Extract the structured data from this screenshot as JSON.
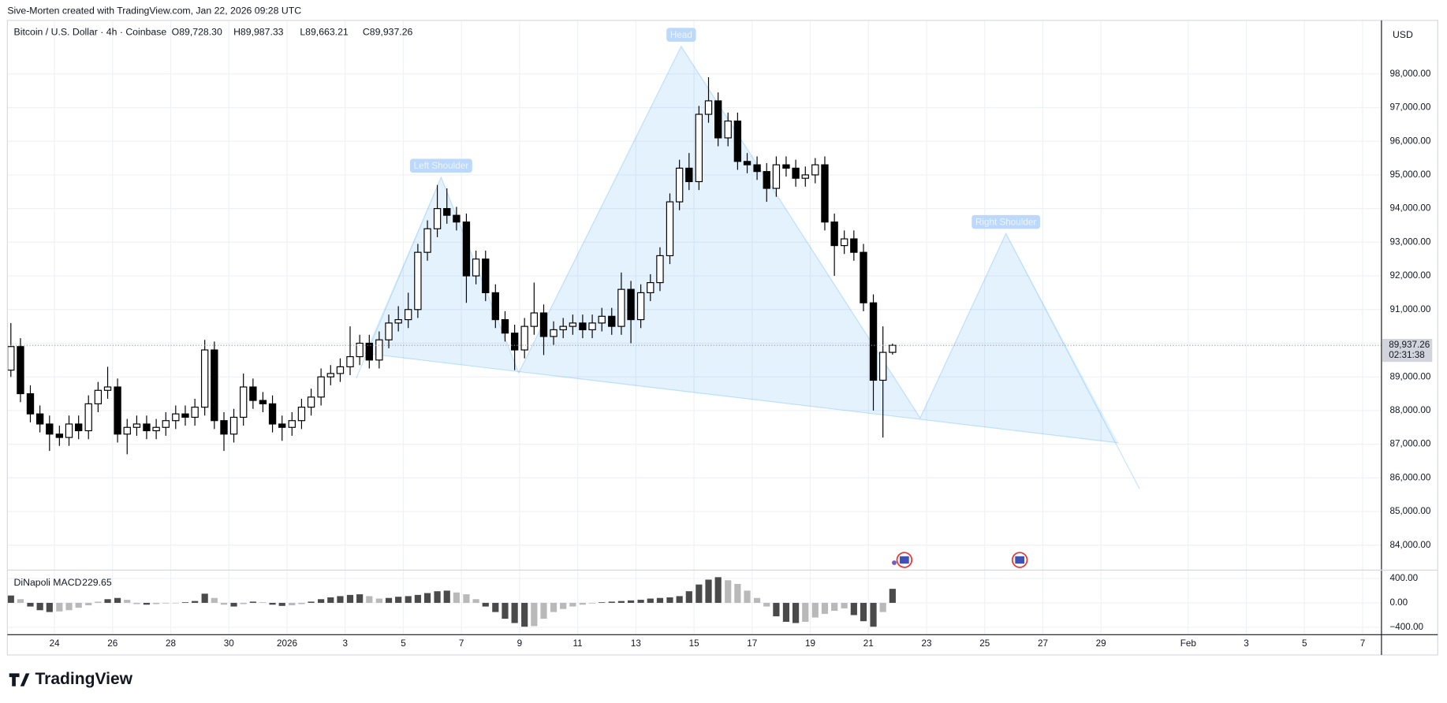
{
  "header": {
    "credit": "Sive-Morten created with TradingView.com, Jan 22, 2026 09:28 UTC",
    "logo": "TradingView"
  },
  "chart_data": {
    "type": "candlestick",
    "title": "Bitcoin / U.S. Dollar · 4h · Coinbase",
    "legend_ohlc": [
      "O89,728.30",
      "H89,987.33",
      "L89,663.21",
      "C89,937.26"
    ],
    "currency": "USD",
    "last_price_label": "89,937.26",
    "countdown": "02:31:38",
    "up_color": "#ffffff",
    "down_color": "#000000",
    "grid": true,
    "x": [
      -9.5,
      -9.17,
      -8.83,
      -8.5,
      -8.17,
      -7.83,
      -7.5,
      -7.17,
      -6.83,
      -6.5,
      -6.17,
      -5.83,
      -5.5,
      -5.17,
      -4.83,
      -4.5,
      -4.17,
      -3.83,
      -3.5,
      -3.17,
      -2.83,
      -2.5,
      -2.17,
      -1.83,
      -1.5,
      -1.17,
      -0.83,
      -0.5,
      -0.17,
      0.17,
      0.5,
      0.83,
      1.17,
      1.5,
      1.83,
      2.17,
      2.5,
      2.83,
      3.17,
      3.5,
      3.83,
      4.17,
      4.5,
      4.83,
      5.17,
      5.5,
      5.83,
      6.17,
      6.5,
      6.83,
      7.17,
      7.5,
      7.83,
      8.17,
      8.5,
      8.83,
      9.17,
      9.5,
      9.83,
      10.17,
      10.5,
      10.83,
      11.17,
      11.5,
      11.83,
      12.17,
      12.5,
      12.83,
      13.17,
      13.5,
      13.83,
      14.17,
      14.5,
      14.83,
      15.17,
      15.5,
      15.83,
      16.17,
      16.5,
      16.83,
      17.17,
      17.5,
      17.83,
      18.17,
      18.5,
      18.83,
      19.17,
      19.5,
      19.83,
      20.17,
      20.5,
      20.83
    ],
    "open": [
      89200,
      89900,
      88500,
      87900,
      87600,
      87300,
      87200,
      87600,
      87400,
      88200,
      88600,
      88700,
      87300,
      87500,
      87600,
      87400,
      87500,
      87700,
      87900,
      87800,
      88100,
      89800,
      87700,
      87300,
      87800,
      88700,
      88300,
      88200,
      87600,
      87500,
      87700,
      88100,
      88400,
      89000,
      89100,
      89300,
      89600,
      90000,
      89500,
      90100,
      90600,
      90700,
      91000,
      92700,
      93400,
      94000,
      93800,
      93600,
      92000,
      92500,
      91500,
      90700,
      90300,
      89800,
      90500,
      90900,
      90200,
      90400,
      90500,
      90600,
      90400,
      90600,
      90800,
      90500,
      91600,
      90700,
      91500,
      91800,
      92600,
      94200,
      95200,
      94800,
      96800,
      97200,
      96100,
      96600,
      95400,
      95300,
      95100,
      94600,
      95300,
      95200,
      94900,
      95000,
      95300,
      93600,
      92900,
      93100,
      92700,
      91200,
      88900,
      89728.3
    ],
    "high": [
      90600,
      90150,
      88750,
      88150,
      87850,
      87550,
      87850,
      87850,
      88450,
      88850,
      89300,
      88950,
      87750,
      87850,
      87850,
      87750,
      87950,
      88150,
      88150,
      88350,
      90100,
      90050,
      87950,
      88050,
      89100,
      88950,
      88550,
      88450,
      87850,
      87950,
      88350,
      88650,
      89250,
      89350,
      89550,
      90500,
      90250,
      90250,
      90350,
      90850,
      91100,
      91500,
      92950,
      93650,
      94700,
      94600,
      94050,
      93850,
      92750,
      92750,
      91750,
      90950,
      90550,
      90750,
      91800,
      91150,
      90650,
      90750,
      90850,
      90850,
      90850,
      91050,
      91050,
      92100,
      91850,
      91750,
      92050,
      92850,
      94450,
      95450,
      95650,
      97050,
      97900,
      97450,
      96850,
      96850,
      95650,
      95550,
      95350,
      95550,
      95550,
      95450,
      95250,
      95500,
      95550,
      93850,
      93350,
      93350,
      92950,
      91450,
      90500,
      89987.33
    ],
    "low": [
      89000,
      88250,
      87650,
      87350,
      86800,
      86950,
      86950,
      87150,
      87150,
      87950,
      88350,
      87050,
      86700,
      87250,
      87150,
      87150,
      87250,
      87450,
      87550,
      87550,
      87850,
      87450,
      86800,
      87050,
      87550,
      88050,
      87950,
      87350,
      87100,
      87250,
      87450,
      87850,
      88150,
      88750,
      88850,
      89050,
      89350,
      89250,
      89250,
      89850,
      90350,
      90450,
      90750,
      92450,
      93150,
      93550,
      93350,
      91200,
      91750,
      91250,
      90450,
      90050,
      89200,
      89550,
      90250,
      89650,
      89950,
      90150,
      90250,
      90150,
      90150,
      90350,
      90250,
      90250,
      90000,
      90450,
      91250,
      91550,
      92350,
      93950,
      94550,
      94550,
      96550,
      95850,
      95850,
      95150,
      95050,
      94850,
      94200,
      94350,
      94950,
      94650,
      94650,
      94750,
      93350,
      92000,
      92650,
      92450,
      90950,
      88000,
      87200,
      89663.21
    ],
    "close": [
      89900,
      88500,
      87900,
      87600,
      87300,
      87200,
      87600,
      87400,
      88200,
      88600,
      88700,
      87300,
      87500,
      87600,
      87400,
      87500,
      87700,
      87900,
      87800,
      88100,
      89800,
      87700,
      87300,
      87800,
      88700,
      88300,
      88200,
      87600,
      87500,
      87700,
      88100,
      88400,
      89000,
      89100,
      89300,
      89600,
      90000,
      89500,
      90100,
      90600,
      90700,
      91000,
      92700,
      93400,
      94000,
      93800,
      93600,
      92000,
      92500,
      91500,
      90700,
      90300,
      89800,
      90500,
      90900,
      90200,
      90400,
      90500,
      90600,
      90400,
      90600,
      90800,
      90500,
      91600,
      90700,
      91500,
      91800,
      92600,
      94200,
      95200,
      94800,
      96800,
      97200,
      96100,
      96600,
      95400,
      95300,
      95100,
      94600,
      95300,
      95200,
      94900,
      95000,
      95300,
      93600,
      92900,
      93100,
      92700,
      91200,
      88900,
      89728.3,
      89937.26
    ],
    "xlim": [
      -9.62,
      37.65
    ],
    "xticks": [
      {
        "value": -8,
        "label": "24"
      },
      {
        "value": -6,
        "label": "26"
      },
      {
        "value": -4,
        "label": "28"
      },
      {
        "value": -2,
        "label": "30"
      },
      {
        "value": 0,
        "label": "2026"
      },
      {
        "value": 2,
        "label": "3"
      },
      {
        "value": 4,
        "label": "5"
      },
      {
        "value": 6,
        "label": "7"
      },
      {
        "value": 8,
        "label": "9"
      },
      {
        "value": 10,
        "label": "11"
      },
      {
        "value": 12,
        "label": "13"
      },
      {
        "value": 14,
        "label": "15"
      },
      {
        "value": 16,
        "label": "17"
      },
      {
        "value": 18,
        "label": "19"
      },
      {
        "value": 20,
        "label": "21"
      },
      {
        "value": 22,
        "label": "23"
      },
      {
        "value": 24,
        "label": "25"
      },
      {
        "value": 26,
        "label": "27"
      },
      {
        "value": 28,
        "label": "29"
      },
      {
        "value": 31,
        "label": "Feb"
      },
      {
        "value": 33,
        "label": "3"
      },
      {
        "value": 35,
        "label": "5"
      },
      {
        "value": 37,
        "label": "7"
      }
    ],
    "ylim": [
      83260,
      99590
    ],
    "yticks": [
      {
        "value": 84000,
        "label": "84,000.00"
      },
      {
        "value": 85000,
        "label": "85,000.00"
      },
      {
        "value": 86000,
        "label": "86,000.00"
      },
      {
        "value": 87000,
        "label": "87,000.00"
      },
      {
        "value": 88000,
        "label": "88,000.00"
      },
      {
        "value": 89000,
        "label": "89,000.00"
      },
      {
        "value": 90000,
        "label": "90,000.00"
      },
      {
        "value": 91000,
        "label": "91,000.00"
      },
      {
        "value": 92000,
        "label": "92,000.00"
      },
      {
        "value": 93000,
        "label": "93,000.00"
      },
      {
        "value": 94000,
        "label": "94,000.00"
      },
      {
        "value": 95000,
        "label": "95,000.00"
      },
      {
        "value": 96000,
        "label": "96,000.00"
      },
      {
        "value": 97000,
        "label": "97,000.00"
      },
      {
        "value": 98000,
        "label": "98,000.00"
      }
    ],
    "pattern": {
      "color": "#2196f3",
      "x": [
        2.38,
        5.3,
        7.97,
        13.56,
        21.78,
        24.73,
        29.33
      ],
      "y": [
        88960,
        94930,
        89120,
        98820,
        87780,
        93260,
        85670
      ],
      "labels": [
        null,
        "Left Shoulder",
        null,
        "Head",
        null,
        "Right Shoulder",
        null
      ],
      "neckline_x": [
        2.67,
        28.6
      ],
      "neckline_y": [
        89700,
        87040
      ]
    },
    "macd": {
      "name": "DiNapoli MACD",
      "color_growing": "#4a4a4a",
      "color_fading": "#b9b9b9",
      "values": [
        120,
        60,
        -60,
        -120,
        -150,
        -140,
        -120,
        -80,
        -40,
        20,
        60,
        80,
        50,
        -20,
        -30,
        -20,
        -10,
        0,
        10,
        30,
        150,
        80,
        -30,
        -60,
        -20,
        20,
        10,
        -30,
        -50,
        -40,
        -20,
        20,
        60,
        90,
        110,
        130,
        140,
        110,
        70,
        80,
        100,
        110,
        130,
        160,
        190,
        200,
        170,
        140,
        60,
        -60,
        -150,
        -260,
        -330,
        -390,
        -380,
        -260,
        -150,
        -100,
        -60,
        -30,
        -10,
        10,
        20,
        30,
        40,
        50,
        70,
        80,
        90,
        110,
        190,
        300,
        380,
        420,
        370,
        310,
        200,
        80,
        -60,
        -220,
        -310,
        -330,
        -310,
        -240,
        -180,
        -130,
        -90,
        -200,
        -300,
        -390,
        -150,
        229.65
      ],
      "ylim": [
        -520,
        536
      ],
      "yticks": [
        {
          "value": 400,
          "label": "400.00"
        },
        {
          "value": 0,
          "label": "0.00"
        },
        {
          "value": -400,
          "label": "−400.00"
        }
      ]
    }
  }
}
